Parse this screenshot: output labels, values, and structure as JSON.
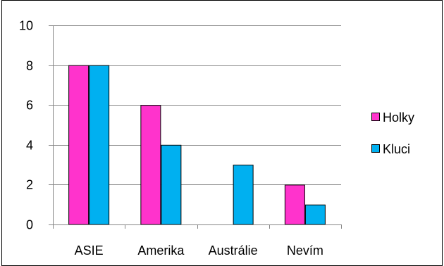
{
  "chart_data": {
    "type": "bar",
    "categories": [
      "ASIE",
      "Amerika",
      "Austrálie",
      "Nevím"
    ],
    "series": [
      {
        "name": "Holky",
        "values": [
          8,
          6,
          0,
          2
        ],
        "color": "#FF33CC"
      },
      {
        "name": "Kluci",
        "values": [
          8,
          4,
          3,
          1
        ],
        "color": "#00B0F0"
      }
    ],
    "ylim": [
      0,
      10
    ],
    "yticks": [
      0,
      2,
      4,
      6,
      8,
      10
    ],
    "grid": true,
    "legend_position": "right",
    "title": "",
    "xlabel": "",
    "ylabel": ""
  }
}
